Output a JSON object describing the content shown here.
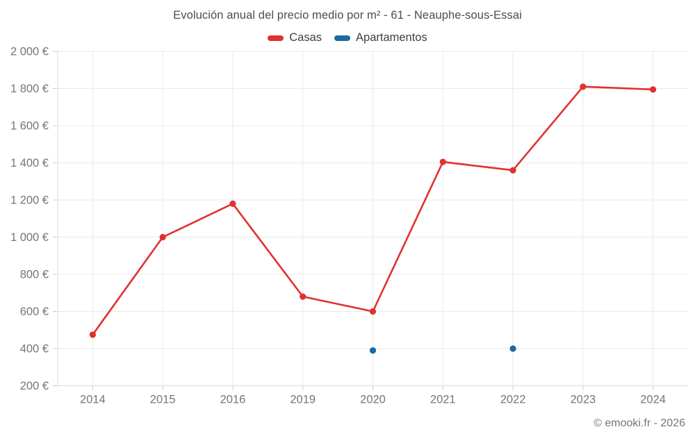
{
  "header": {
    "title": "Evolución anual del precio medio por m² - 61 - Neauphe-sous-Essai"
  },
  "legend": {
    "items": [
      {
        "label": "Casas",
        "color": "#e0312e"
      },
      {
        "label": "Apartamentos",
        "color": "#1a6ba1"
      }
    ]
  },
  "footer": {
    "credit": "© emooki.fr - 2026"
  },
  "chart_data": {
    "type": "line",
    "title": "Evolución anual del precio medio por m² - 61 - Neauphe-sous-Essai",
    "categories": [
      "2014",
      "2015",
      "2016",
      "2019",
      "2020",
      "2021",
      "2022",
      "2023",
      "2024"
    ],
    "series": [
      {
        "name": "Casas",
        "color": "#e0312e",
        "values": [
          475,
          1000,
          1180,
          680,
          600,
          1405,
          1360,
          1810,
          1795
        ]
      },
      {
        "name": "Apartamentos",
        "color": "#1a6ba1",
        "values": [
          null,
          null,
          null,
          null,
          390,
          null,
          400,
          null,
          null
        ]
      }
    ],
    "y_ticks": [
      {
        "value": 2000,
        "label": "2 000 €"
      },
      {
        "value": 1800,
        "label": "1 800 €"
      },
      {
        "value": 1600,
        "label": "1 600 €"
      },
      {
        "value": 1400,
        "label": "1 400 €"
      },
      {
        "value": 1200,
        "label": "1 200 €"
      },
      {
        "value": 1000,
        "label": "1 000 €"
      },
      {
        "value": 800,
        "label": "800 €"
      },
      {
        "value": 600,
        "label": "600 €"
      },
      {
        "value": 400,
        "label": "400 €"
      },
      {
        "value": 200,
        "label": "200 €"
      }
    ],
    "ylim": [
      200,
      2000
    ],
    "xlabel": "",
    "ylabel": "",
    "currency": "€",
    "grid": true,
    "legend_position": "top"
  },
  "colors": {
    "background": "#ffffff",
    "grid": "#e9e9e9",
    "axis": "#dcdcdc",
    "tick": "#cccccc",
    "title_text": "#4c4c4c",
    "legend_text": "#3f3f3f",
    "tick_label_text": "#757575",
    "footer_text": "#757575"
  }
}
